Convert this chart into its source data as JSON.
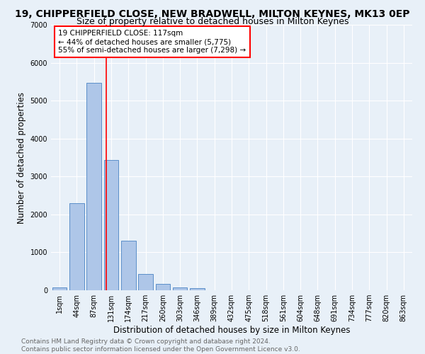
{
  "title": "19, CHIPPERFIELD CLOSE, NEW BRADWELL, MILTON KEYNES, MK13 0EP",
  "subtitle": "Size of property relative to detached houses in Milton Keynes",
  "xlabel": "Distribution of detached houses by size in Milton Keynes",
  "ylabel": "Number of detached properties",
  "footer_line1": "Contains HM Land Registry data © Crown copyright and database right 2024.",
  "footer_line2": "Contains public sector information licensed under the Open Government Licence v3.0.",
  "bar_labels": [
    "1sqm",
    "44sqm",
    "87sqm",
    "131sqm",
    "174sqm",
    "217sqm",
    "260sqm",
    "303sqm",
    "346sqm",
    "389sqm",
    "432sqm",
    "475sqm",
    "518sqm",
    "561sqm",
    "604sqm",
    "648sqm",
    "691sqm",
    "734sqm",
    "777sqm",
    "820sqm",
    "863sqm"
  ],
  "bar_values": [
    70,
    2300,
    5475,
    3430,
    1310,
    430,
    165,
    80,
    55,
    0,
    0,
    0,
    0,
    0,
    0,
    0,
    0,
    0,
    0,
    0,
    0
  ],
  "bar_color": "#aec6e8",
  "bar_edge_color": "#5b8fc9",
  "vline_x": 2.72,
  "vline_color": "red",
  "annotation_text": "19 CHIPPERFIELD CLOSE: 117sqm\n← 44% of detached houses are smaller (5,775)\n55% of semi-detached houses are larger (7,298) →",
  "annotation_box_color": "white",
  "annotation_box_edge": "red",
  "ylim": [
    0,
    7000
  ],
  "yticks": [
    0,
    1000,
    2000,
    3000,
    4000,
    5000,
    6000,
    7000
  ],
  "background_color": "#e8f0f8",
  "grid_color": "white",
  "title_fontsize": 10,
  "subtitle_fontsize": 9,
  "axis_label_fontsize": 8.5,
  "tick_fontsize": 7,
  "footer_fontsize": 6.5
}
